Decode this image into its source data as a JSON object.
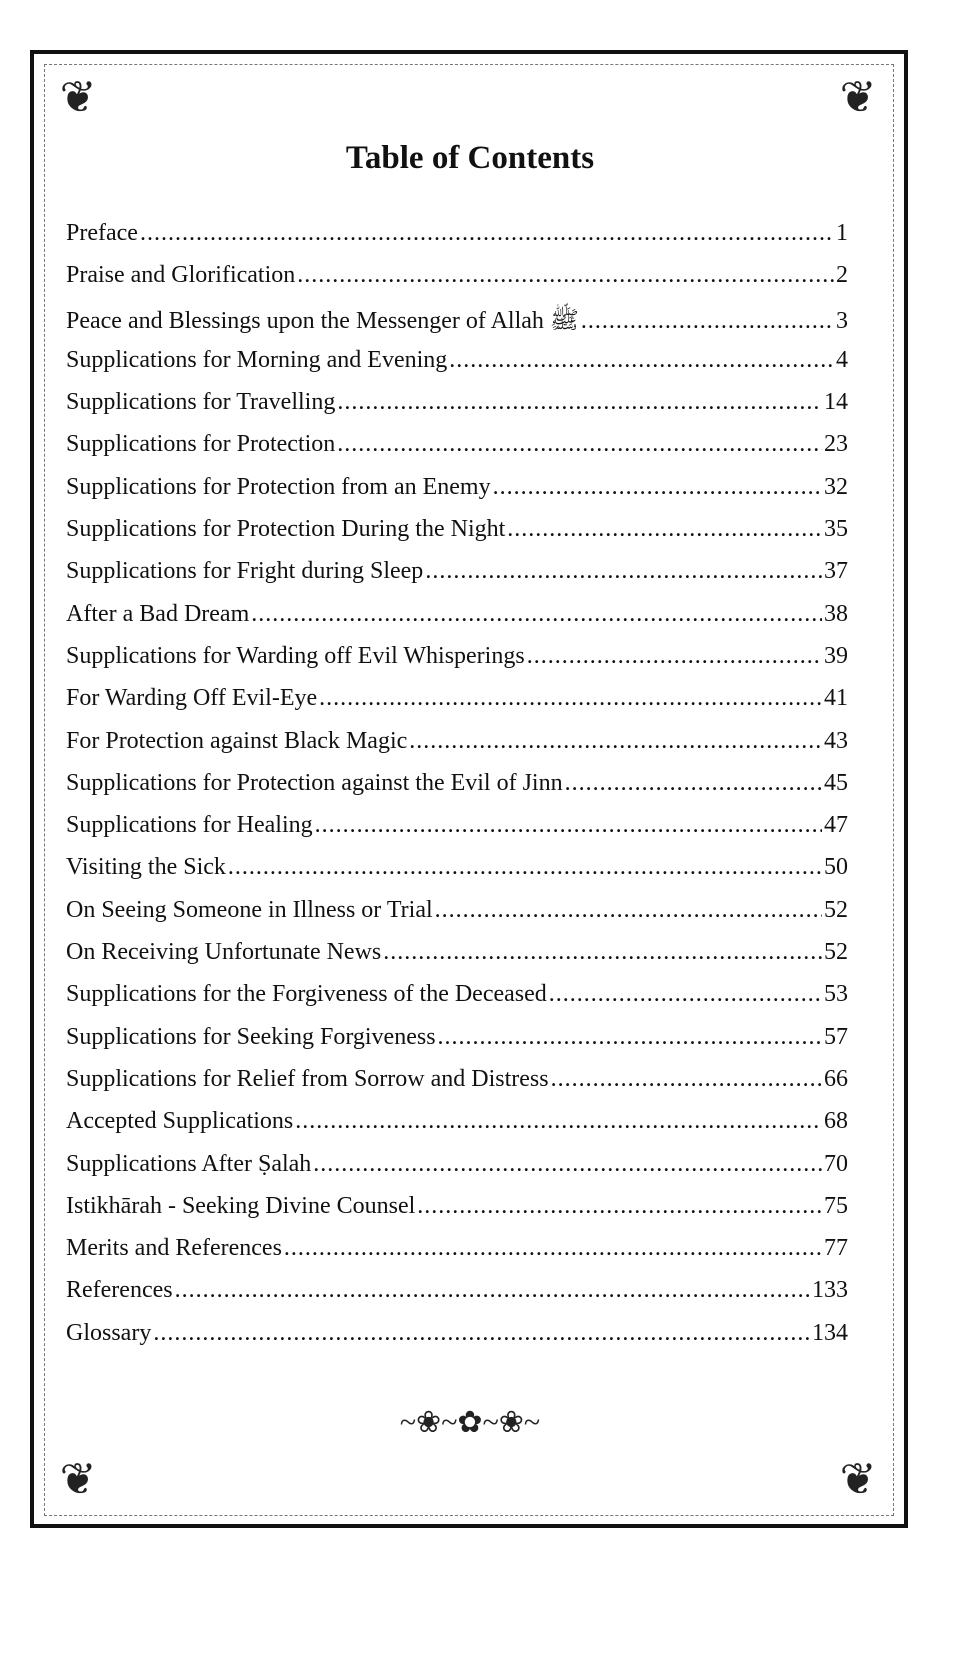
{
  "title": "Table of Contents",
  "entries": [
    {
      "label": "Preface",
      "page": "1"
    },
    {
      "label": "Praise and Glorification",
      "page": "2"
    },
    {
      "label": "Peace and Blessings upon the Messenger of Allah ﷺ",
      "page": "3"
    },
    {
      "label": "Supplications for Morning and Evening",
      "page": "4"
    },
    {
      "label": "Supplications for Travelling",
      "page": "14"
    },
    {
      "label": "Supplications for Protection",
      "page": "23"
    },
    {
      "label": "Supplications for Protection from an Enemy",
      "page": "32"
    },
    {
      "label": "Supplications for Protection During the Night",
      "page": "35"
    },
    {
      "label": "Supplications for Fright during Sleep",
      "page": "37"
    },
    {
      "label": "After a Bad Dream",
      "page": "38"
    },
    {
      "label": "Supplications for Warding off Evil Whisperings",
      "page": "39"
    },
    {
      "label": "For Warding Off  Evil-Eye",
      "page": "41"
    },
    {
      "label": "For Protection against Black Magic",
      "page": "43"
    },
    {
      "label": "Supplications for Protection against the Evil of Jinn",
      "page": "45"
    },
    {
      "label": "Supplications for Healing",
      "page": "47"
    },
    {
      "label": "Visiting the Sick",
      "page": "50"
    },
    {
      "label": "On Seeing Someone in Illness or Trial",
      "page": "52"
    },
    {
      "label": "On Receiving Unfortunate News",
      "page": "52"
    },
    {
      "label": "Supplications for the Forgiveness of the Deceased",
      "page": "53"
    },
    {
      "label": "Supplications for Seeking Forgiveness",
      "page": "57"
    },
    {
      "label": "Supplications for Relief from Sorrow and Distress",
      "page": "66"
    },
    {
      "label": "Accepted Supplications",
      "page": "68"
    },
    {
      "label": "Supplications After Ṣalah",
      "page": "70"
    },
    {
      "label": "Istikhārah - Seeking Divine Counsel",
      "page": "75"
    },
    {
      "label": "Merits and References",
      "page": "77"
    },
    {
      "label": "References",
      "page": "133"
    },
    {
      "label": "Glossary",
      "page": "134"
    }
  ]
}
